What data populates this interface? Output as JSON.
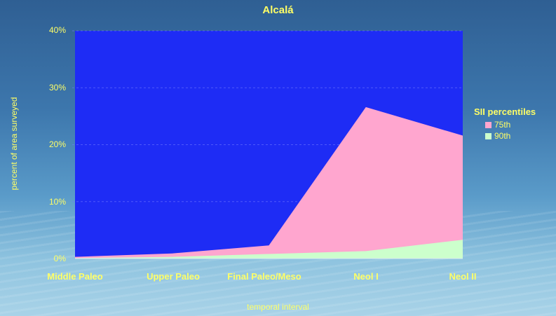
{
  "chart_data": {
    "type": "area",
    "title": "Alcalá",
    "xlabel": "temporal interval",
    "ylabel": "percent of area surveyed",
    "categories": [
      "Middle Paleo",
      "Upper Paleo",
      "Final Paleo/Meso",
      "Neol I",
      "Neol II"
    ],
    "yticks": [
      "0%",
      "10%",
      "20%",
      "30%",
      "40%"
    ],
    "ylim": [
      0,
      40
    ],
    "legend_title": "SII percentiles",
    "legend_position": "right",
    "grid": true,
    "series": [
      {
        "name": "75th",
        "color": "#ffa6cf",
        "values": [
          0.3,
          0.9,
          2.3,
          26.6,
          21.6
        ]
      },
      {
        "name": "90th",
        "color": "#ccffcc",
        "values": [
          0.1,
          0.3,
          0.8,
          1.3,
          3.3
        ]
      }
    ],
    "plot_background": "#1e2cf5"
  }
}
